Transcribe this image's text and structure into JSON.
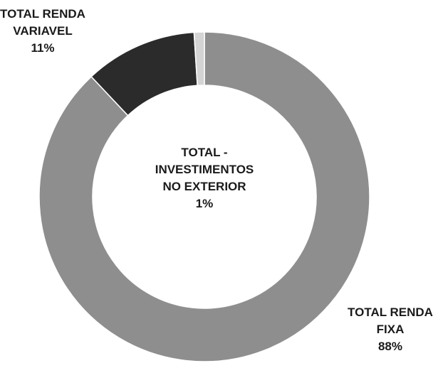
{
  "chart_data": {
    "type": "donut",
    "categories": [
      "TOTAL RENDA\nFIXA",
      "TOTAL RENDA\nVARIAVEL",
      "TOTAL -\nINVESTIMENTOS\nNO EXTERIOR"
    ],
    "values": [
      88,
      11,
      1
    ],
    "colors": [
      "#8e8e8e",
      "#2b2b2b",
      "#d4d4d4"
    ]
  }
}
